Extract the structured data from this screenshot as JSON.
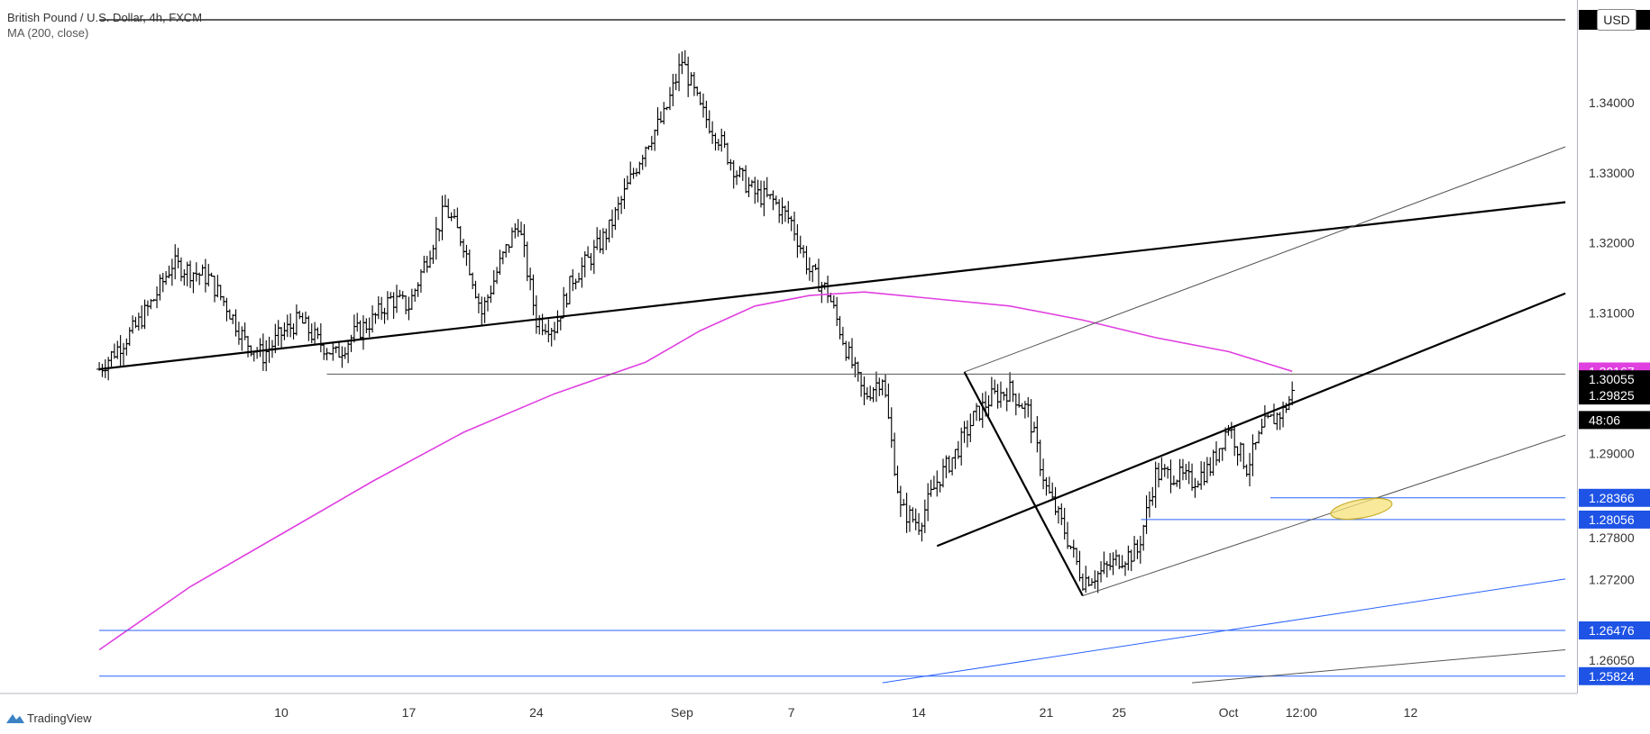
{
  "header": {
    "title": "British Pound / U.S. Dollar, 4h, FXCM",
    "indicator": "MA (200, close)",
    "currency": "USD"
  },
  "footer": {
    "brand": "TradingView"
  },
  "colors": {
    "candles": "#000000",
    "ma": "#e040e0",
    "trend": "#000000",
    "channel": "#555555",
    "support": "#2962ff",
    "highlight_fill": "#f5e27a",
    "highlight_stroke": "#c9ae2b",
    "tag_ma": "#e040e0",
    "tag_dark": "#000000",
    "tag_blue": "#1e53e5"
  },
  "chart_data": {
    "type": "candlestick",
    "symbol": "British Pound / U.S. Dollar",
    "interval": "4h",
    "ylim": [
      1.2568,
      1.3518
    ],
    "x_ticks": [
      {
        "label": "10",
        "x": 10
      },
      {
        "label": "17",
        "x": 17
      },
      {
        "label": "24",
        "x": 24
      },
      {
        "label": "Sep",
        "x": 32
      },
      {
        "label": "7",
        "x": 38
      },
      {
        "label": "14",
        "x": 45
      },
      {
        "label": "21",
        "x": 52
      },
      {
        "label": "25",
        "x": 56
      },
      {
        "label": "Oct",
        "x": 62
      },
      {
        "label": "12:00",
        "x": 66
      },
      {
        "label": "12",
        "x": 72
      }
    ],
    "y_ticks": [
      {
        "label": "1.34000",
        "value": 1.34
      },
      {
        "label": "1.33000",
        "value": 1.33
      },
      {
        "label": "1.32000",
        "value": 1.32
      },
      {
        "label": "1.31000",
        "value": 1.31
      },
      {
        "label": "1.29000",
        "value": 1.29
      },
      {
        "label": "1.27800",
        "value": 1.278
      },
      {
        "label": "1.27200",
        "value": 1.272
      },
      {
        "label": "1.26050",
        "value": 1.2605
      }
    ],
    "price_tags": [
      {
        "label": "1.30167",
        "value": 1.30167,
        "style": "ma"
      },
      {
        "label": "1.30055",
        "value": 1.30055,
        "style": "dark"
      },
      {
        "label": "1.29825",
        "value": 1.29825,
        "style": "dark"
      },
      {
        "label": "48:06",
        "value": 1.29475,
        "style": "dark"
      },
      {
        "label": "1.28366",
        "value": 1.28366,
        "style": "blue"
      },
      {
        "label": "1.28056",
        "value": 1.28056,
        "style": "blue"
      },
      {
        "label": "1.26476",
        "value": 1.26476,
        "style": "blue"
      },
      {
        "label": "1.25824",
        "value": 1.25824,
        "style": "blue"
      }
    ],
    "anchors": [
      {
        "x": 0,
        "c": 1.302
      },
      {
        "x": 2,
        "c": 1.308
      },
      {
        "x": 3,
        "c": 1.312
      },
      {
        "x": 4,
        "c": 1.317
      },
      {
        "x": 6,
        "c": 1.315
      },
      {
        "x": 7,
        "c": 1.311
      },
      {
        "x": 8,
        "c": 1.306
      },
      {
        "x": 9,
        "c": 1.304
      },
      {
        "x": 10,
        "c": 1.307
      },
      {
        "x": 11,
        "c": 1.309
      },
      {
        "x": 12,
        "c": 1.306
      },
      {
        "x": 13,
        "c": 1.304
      },
      {
        "x": 14,
        "c": 1.307
      },
      {
        "x": 15,
        "c": 1.309
      },
      {
        "x": 16,
        "c": 1.312
      },
      {
        "x": 17,
        "c": 1.311
      },
      {
        "x": 18,
        "c": 1.318
      },
      {
        "x": 19,
        "c": 1.325
      },
      {
        "x": 20,
        "c": 1.32
      },
      {
        "x": 21,
        "c": 1.31
      },
      {
        "x": 22,
        "c": 1.317
      },
      {
        "x": 23,
        "c": 1.323
      },
      {
        "x": 24,
        "c": 1.309
      },
      {
        "x": 25,
        "c": 1.308
      },
      {
        "x": 26,
        "c": 1.315
      },
      {
        "x": 27,
        "c": 1.318
      },
      {
        "x": 28,
        "c": 1.322
      },
      {
        "x": 29,
        "c": 1.328
      },
      {
        "x": 30,
        "c": 1.334
      },
      {
        "x": 31,
        "c": 1.338
      },
      {
        "x": 32,
        "c": 1.346
      },
      {
        "x": 33,
        "c": 1.339
      },
      {
        "x": 34,
        "c": 1.335
      },
      {
        "x": 35,
        "c": 1.33
      },
      {
        "x": 36,
        "c": 1.327
      },
      {
        "x": 37,
        "c": 1.326
      },
      {
        "x": 38,
        "c": 1.323
      },
      {
        "x": 39,
        "c": 1.316
      },
      {
        "x": 40,
        "c": 1.313
      },
      {
        "x": 41,
        "c": 1.305
      },
      {
        "x": 42,
        "c": 1.298
      },
      {
        "x": 43,
        "c": 1.301
      },
      {
        "x": 44,
        "c": 1.282
      },
      {
        "x": 45,
        "c": 1.28
      },
      {
        "x": 46,
        "c": 1.286
      },
      {
        "x": 47,
        "c": 1.29
      },
      {
        "x": 48,
        "c": 1.295
      },
      {
        "x": 49,
        "c": 1.298
      },
      {
        "x": 50,
        "c": 1.299
      },
      {
        "x": 51,
        "c": 1.296
      },
      {
        "x": 52,
        "c": 1.285
      },
      {
        "x": 53,
        "c": 1.279
      },
      {
        "x": 54,
        "c": 1.272
      },
      {
        "x": 55,
        "c": 1.273
      },
      {
        "x": 56,
        "c": 1.275
      },
      {
        "x": 57,
        "c": 1.276
      },
      {
        "x": 58,
        "c": 1.287
      },
      {
        "x": 59,
        "c": 1.287
      },
      {
        "x": 60,
        "c": 1.286
      },
      {
        "x": 61,
        "c": 1.288
      },
      {
        "x": 62,
        "c": 1.294
      },
      {
        "x": 63,
        "c": 1.288
      },
      {
        "x": 64,
        "c": 1.294
      },
      {
        "x": 65,
        "c": 1.296
      },
      {
        "x": 65.5,
        "c": 1.2985
      }
    ],
    "moving_average": [
      {
        "x": 0,
        "y": 1.262
      },
      {
        "x": 5,
        "y": 1.271
      },
      {
        "x": 10,
        "y": 1.2785
      },
      {
        "x": 15,
        "y": 1.286
      },
      {
        "x": 20,
        "y": 1.293
      },
      {
        "x": 25,
        "y": 1.2985
      },
      {
        "x": 30,
        "y": 1.303
      },
      {
        "x": 33,
        "y": 1.3075
      },
      {
        "x": 36,
        "y": 1.311
      },
      {
        "x": 39,
        "y": 1.3125
      },
      {
        "x": 42,
        "y": 1.313
      },
      {
        "x": 46,
        "y": 1.312
      },
      {
        "x": 50,
        "y": 1.311
      },
      {
        "x": 54,
        "y": 1.309
      },
      {
        "x": 58,
        "y": 1.3065
      },
      {
        "x": 62,
        "y": 1.3045
      },
      {
        "x": 65.5,
        "y": 1.3017
      }
    ],
    "trendlines": [
      {
        "name": "long-term-trendline",
        "x1": 0,
        "y1": 1.302,
        "x2": 80.5,
        "y2": 1.3258,
        "style": "trend"
      },
      {
        "name": "resistance-trendline",
        "x1": 46,
        "y1": 1.2768,
        "x2": 80.5,
        "y2": 1.3128,
        "style": "trend"
      },
      {
        "name": "decline-trendline",
        "x1": 47.5,
        "y1": 1.3016,
        "x2": 54,
        "y2": 1.2697,
        "style": "trend"
      },
      {
        "name": "upper-channel-line",
        "x1": 47.5,
        "y1": 1.3016,
        "x2": 80.5,
        "y2": 1.3337,
        "style": "channel"
      },
      {
        "name": "lower-channel-line",
        "x1": 54,
        "y1": 1.2697,
        "x2": 80.5,
        "y2": 1.2926,
        "style": "channel"
      },
      {
        "name": "bottom-channel-line",
        "x1": 60,
        "y1": 1.2573,
        "x2": 80.5,
        "y2": 1.262,
        "style": "channel"
      },
      {
        "name": "blue-support-trendline",
        "x1": 43,
        "y1": 1.2573,
        "x2": 80.5,
        "y2": 1.2721,
        "style": "support"
      }
    ],
    "horizontal_levels": [
      {
        "name": "level-1-3013",
        "value": 1.3013,
        "x1": 12.5,
        "x2": 80.5,
        "style": "channel"
      },
      {
        "name": "level-1-28366",
        "value": 1.28366,
        "x1": 64.3,
        "x2": 80.5,
        "style": "support"
      },
      {
        "name": "level-1-28056",
        "value": 1.28056,
        "x1": 57.2,
        "x2": 80.5,
        "style": "support"
      },
      {
        "name": "level-1-26476",
        "value": 1.26476,
        "x1": 0,
        "x2": 80.5,
        "style": "support"
      },
      {
        "name": "level-1-25824",
        "value": 1.25824,
        "x1": 0,
        "x2": 80.5,
        "style": "support"
      },
      {
        "name": "top-level",
        "value": 1.3518,
        "x1": 0,
        "x2": 80.5,
        "style": "trend"
      }
    ],
    "highlight": {
      "x": 69.3,
      "y": 1.2821,
      "rx": 1.7,
      "ry": 0.0013,
      "rotate_deg": -10
    }
  }
}
